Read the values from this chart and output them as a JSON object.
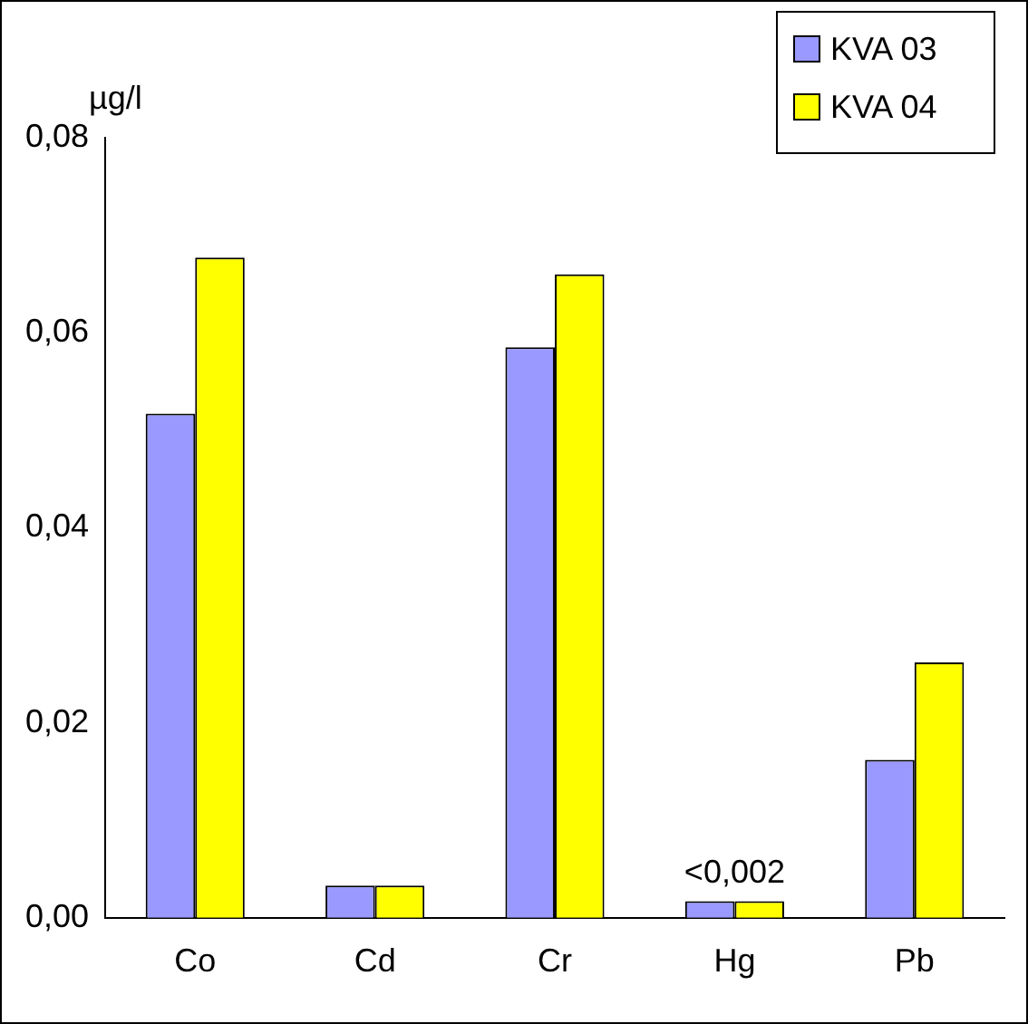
{
  "chart_data": {
    "type": "bar",
    "ylabel": "µg/l",
    "categories": [
      "Co",
      "Cd",
      "Cr",
      "Hg",
      "Pb"
    ],
    "series": [
      {
        "name": "KVA 03",
        "color": "#9999ff",
        "values": [
          0.0517,
          0.0033,
          0.0585,
          0.0017,
          0.0162
        ]
      },
      {
        "name": "KVA 04",
        "color": "#ffff00",
        "values": [
          0.0677,
          0.0033,
          0.066,
          0.0017,
          0.0262
        ]
      }
    ],
    "ylim": [
      0,
      0.08
    ],
    "yticks": [
      {
        "value": 0,
        "label": "0,00"
      },
      {
        "value": 0.02,
        "label": "0,02"
      },
      {
        "value": 0.04,
        "label": "0,04"
      },
      {
        "value": 0.06,
        "label": "0,06"
      },
      {
        "value": 0.08,
        "label": "0,08"
      }
    ],
    "annotations": [
      {
        "text": "<0,002",
        "x": "Hg",
        "y": 0.0017
      }
    ],
    "grid": false,
    "legend": "top right"
  }
}
